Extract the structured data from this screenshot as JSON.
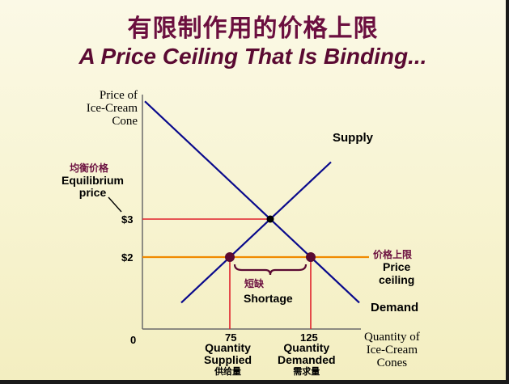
{
  "slide": {
    "title_zh": "有限制作用的价格上限",
    "title_en": "A Price Ceiling That Is Binding..."
  },
  "chart_data": {
    "type": "line",
    "ylabel": [
      "Price of",
      "Ice-Cream",
      "Cone"
    ],
    "xlabel": [
      "Quantity of",
      "Ice-Cream",
      "Cones"
    ],
    "origin_label": "0",
    "y_ticks": [
      {
        "value": 3,
        "label": "$3"
      },
      {
        "value": 2,
        "label": "$2"
      }
    ],
    "x_ticks": [
      {
        "value": 75,
        "label": "75"
      },
      {
        "value": 125,
        "label": "125"
      }
    ],
    "series": [
      {
        "name": "Supply",
        "color": "#0a0a8c",
        "points": [
          [
            75,
            2
          ],
          [
            100,
            3
          ]
        ]
      },
      {
        "name": "Demand",
        "color": "#0a0a8c",
        "points": [
          [
            100,
            3
          ],
          [
            125,
            2
          ]
        ]
      }
    ],
    "equilibrium": {
      "quantity": 100,
      "price": 3,
      "label_zh": "均衡价格",
      "label_en": [
        "Equilibrium",
        "price"
      ]
    },
    "price_ceiling": {
      "price": 2,
      "label_zh": "价格上限",
      "label_en": [
        "Price",
        "ceiling"
      ],
      "color": "#f08a00"
    },
    "shortage": {
      "from": 75,
      "to": 125,
      "label_zh": "短缺",
      "label_en": "Shortage"
    },
    "quantity_supplied": {
      "value": 75,
      "label_en": [
        "Quantity",
        "Supplied"
      ],
      "label_zh": "供给量"
    },
    "quantity_demanded": {
      "value": 125,
      "label_en": [
        "Quantity",
        "Demanded"
      ],
      "label_zh": "需求量"
    },
    "equilibrium_line_color": "#e0202a",
    "dot_color": "#5a0a32"
  }
}
